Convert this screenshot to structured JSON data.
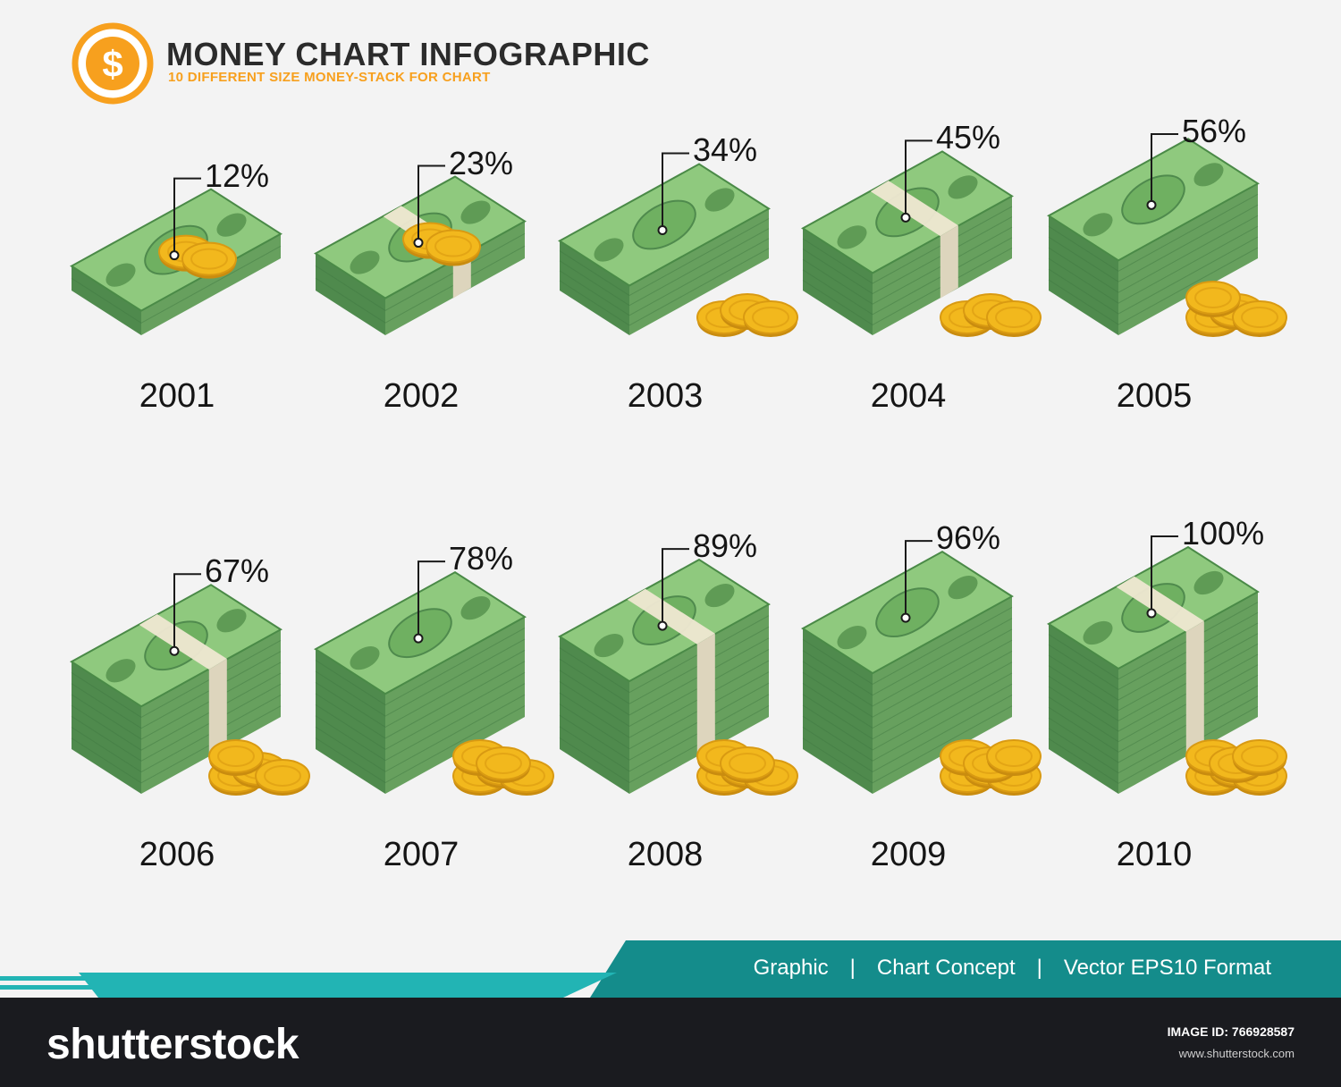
{
  "header": {
    "title": "MONEY CHART INFOGRAPHIC",
    "subtitle": "10 DIFFERENT SIZE MONEY-STACK FOR CHART",
    "logo_icon": "dollar-coin-icon",
    "logo_symbol": "$"
  },
  "colors": {
    "bill_top": "#8fc97e",
    "bill_side_dark": "#4f8a4d",
    "bill_side_mid": "#67a05e",
    "band": "#efe8d2",
    "coin": "#f2b81d",
    "accent_orange": "#f7a01e",
    "teal": "#148c8b",
    "teal_light": "#22b4b4"
  },
  "chart_data": {
    "type": "bar",
    "categories": [
      "2001",
      "2002",
      "2003",
      "2004",
      "2005",
      "2006",
      "2007",
      "2008",
      "2009",
      "2010"
    ],
    "values": [
      12,
      23,
      34,
      45,
      56,
      67,
      78,
      89,
      96,
      100
    ],
    "value_labels": [
      "12%",
      "23%",
      "34%",
      "45%",
      "56%",
      "67%",
      "78%",
      "89%",
      "96%",
      "100%"
    ],
    "unit": "%",
    "title": "MONEY CHART INFOGRAPHIC",
    "ylim": [
      0,
      100
    ]
  },
  "footer": {
    "tags": [
      "Graphic",
      "Chart Concept",
      "Vector EPS10 Format"
    ],
    "separator": "|"
  },
  "stock_bar": {
    "logo_text": "shutterstock",
    "image_id_label": "IMAGE ID: 766928587",
    "url": "www.shutterstock.com"
  }
}
